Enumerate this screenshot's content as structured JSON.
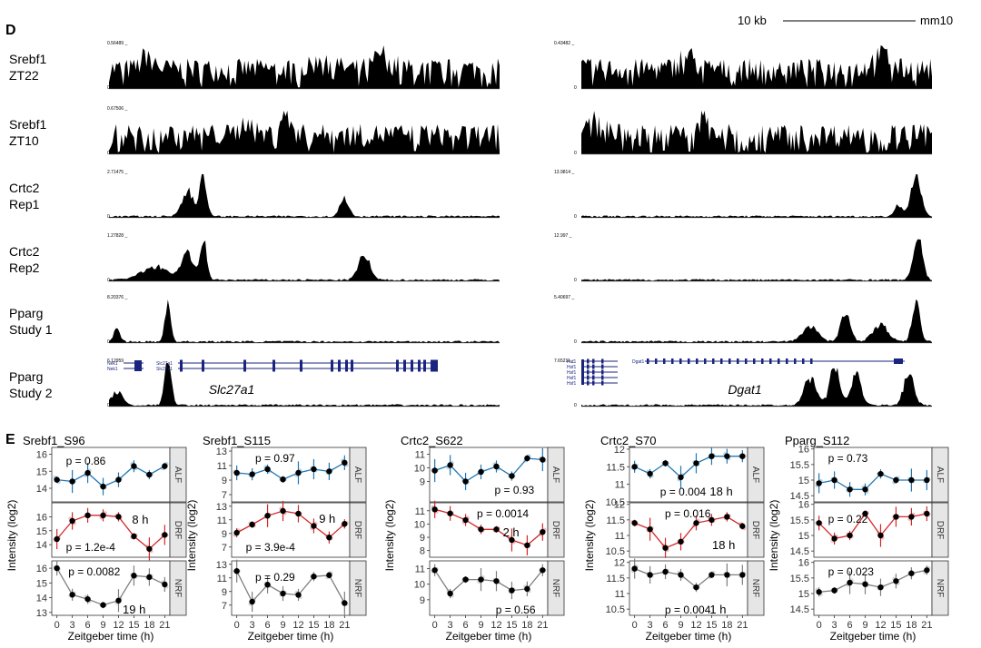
{
  "panel_d": {
    "label": "D",
    "scale_label": "10 kb",
    "assembly_label": "mm10",
    "tracks": [
      {
        "name1": "Srebf1",
        "name2": "ZT22",
        "left_max": "0.56489",
        "right_max": "0.43482"
      },
      {
        "name1": "Srebf1",
        "name2": "ZT10",
        "left_max": "0.67506",
        "right_max": ""
      },
      {
        "name1": "Crtc2",
        "name2": "Rep1",
        "left_max": "2.71475",
        "right_max": "13.9814"
      },
      {
        "name1": "Crtc2",
        "name2": "Rep2",
        "left_max": "1.27828",
        "right_max": "12.997"
      },
      {
        "name1": "Pparg",
        "name2": "Study 1",
        "left_max": "8.20376",
        "right_max": "5.40697"
      },
      {
        "name1": "Pparg",
        "name2": "Study 2",
        "left_max": "6.12959",
        "right_max": "7.65211"
      }
    ],
    "track_zero": "0",
    "left_gene_title": "Slc27a1",
    "right_gene_title": "Dgat1",
    "left_gene_labels": [
      "Nek1",
      "Nek1",
      "Slc27a1",
      "Slc27a1"
    ],
    "right_gene_labels": [
      "Hsf1",
      "Hsf1",
      "Hsf1",
      "Hsf1",
      "Hsf1",
      "Dgat1"
    ]
  },
  "panel_e": {
    "label": "E",
    "xlabel": "Zeitgeber time (h)",
    "ylabel": "Intensity (log2)",
    "strip_labels": [
      "ALF",
      "DRF",
      "NRF"
    ]
  },
  "colors": {
    "ALF": "#1f77b4",
    "DRF": "#d62728",
    "NRF": "#7f7f7f",
    "point": "#000000"
  },
  "chart_data": [
    {
      "type": "line",
      "title": "Srebf1_S96",
      "x": [
        0,
        3,
        6,
        9,
        12,
        15,
        18,
        21
      ],
      "xticks": [
        "0",
        "3",
        "6",
        "9",
        "12",
        "15",
        "18",
        "21"
      ],
      "series": [
        {
          "name": "ALF",
          "ylim": [
            13.2,
            16.4
          ],
          "yticks": [
            13,
            14,
            15,
            16
          ],
          "values": [
            14.5,
            14.4,
            14.9,
            14.1,
            14.5,
            15.3,
            14.8,
            15.3
          ],
          "annotations": [
            "p = 0.86"
          ]
        },
        {
          "name": "DRF",
          "ylim": [
            13.1,
            17.0
          ],
          "yticks": [
            14,
            15,
            16
          ],
          "values": [
            14.4,
            15.7,
            16.1,
            16.1,
            16.0,
            14.6,
            13.7,
            14.7
          ],
          "annotations": [
            "8 h",
            "p = 1.2e-4"
          ]
        },
        {
          "name": "NRF",
          "ylim": [
            12.8,
            16.5
          ],
          "yticks": [
            13,
            14,
            15,
            16
          ],
          "values": [
            16.0,
            14.2,
            13.9,
            13.5,
            13.8,
            15.5,
            15.4,
            14.9
          ],
          "annotations": [
            "p = 0.0082",
            "19 h"
          ]
        }
      ]
    },
    {
      "type": "line",
      "title": "Srebf1_S115",
      "x": [
        0,
        3,
        6,
        9,
        12,
        15,
        18,
        21
      ],
      "xticks": [
        "0",
        "3",
        "6",
        "9",
        "12",
        "15",
        "18",
        "21"
      ],
      "series": [
        {
          "name": "ALF",
          "ylim": [
            6.0,
            13.5
          ],
          "yticks": [
            7,
            9,
            11,
            13
          ],
          "values": [
            10.0,
            9.8,
            10.5,
            9.1,
            10.0,
            10.5,
            10.2,
            11.4
          ],
          "annotations": [
            "p = 0.97"
          ]
        },
        {
          "name": "DRF",
          "ylim": [
            5.5,
            13.5
          ],
          "yticks": [
            7,
            9,
            11,
            13
          ],
          "values": [
            9.1,
            10.3,
            11.6,
            12.3,
            11.9,
            10.1,
            8.4,
            10.4
          ],
          "annotations": [
            "9 h",
            "p = 3.9e-4"
          ]
        },
        {
          "name": "NRF",
          "ylim": [
            5.5,
            13.5
          ],
          "yticks": [
            7,
            9,
            11,
            13
          ],
          "values": [
            12.0,
            7.5,
            10.0,
            8.7,
            8.5,
            11.2,
            11.4,
            7.3
          ],
          "annotations": [
            "p = 0.29"
          ]
        }
      ]
    },
    {
      "type": "line",
      "title": "Crtc2_S622",
      "x": [
        0,
        3,
        6,
        9,
        12,
        15,
        18,
        21
      ],
      "xticks": [
        "0",
        "3",
        "6",
        "9",
        "12",
        "15",
        "18",
        "21"
      ],
      "series": [
        {
          "name": "ALF",
          "ylim": [
            7.5,
            11.5
          ],
          "yticks": [
            9,
            10,
            11
          ],
          "values": [
            9.8,
            10.2,
            9.0,
            9.7,
            10.1,
            9.4,
            10.7,
            10.6
          ],
          "annotations": [
            "p = 0.93"
          ]
        },
        {
          "name": "DRF",
          "ylim": [
            7.5,
            11.6
          ],
          "yticks": [
            8,
            9,
            10,
            11
          ],
          "values": [
            11.1,
            10.8,
            10.3,
            9.6,
            9.6,
            8.8,
            8.4,
            9.4
          ],
          "annotations": [
            "p = 0.0014",
            "2 h"
          ]
        },
        {
          "name": "NRF",
          "ylim": [
            8.0,
            11.5
          ],
          "yticks": [
            9,
            10,
            11
          ],
          "values": [
            10.9,
            9.4,
            10.3,
            10.3,
            10.2,
            9.6,
            9.7,
            10.9
          ],
          "annotations": [
            "p = 0.56"
          ]
        }
      ]
    },
    {
      "type": "line",
      "title": "Crtc2_S70",
      "x": [
        0,
        3,
        6,
        9,
        12,
        15,
        18,
        21
      ],
      "xticks": [
        "0",
        "3",
        "6",
        "9",
        "12",
        "15",
        "18",
        "21"
      ],
      "series": [
        {
          "name": "ALF",
          "ylim": [
            10.5,
            12.05
          ],
          "yticks": [
            10.5,
            11.0,
            11.5,
            12.0
          ],
          "values": [
            11.5,
            11.3,
            11.6,
            11.2,
            11.6,
            11.8,
            11.8,
            11.8
          ],
          "annotations": [
            "p = 0.004",
            "18 h"
          ]
        },
        {
          "name": "DRF",
          "ylim": [
            10.3,
            12.05
          ],
          "yticks": [
            10.5,
            11.0,
            11.5,
            12.0
          ],
          "values": [
            11.4,
            11.2,
            10.6,
            10.8,
            11.4,
            11.5,
            11.6,
            11.3
          ],
          "annotations": [
            "p = 0.016",
            "18 h"
          ]
        },
        {
          "name": "NRF",
          "ylim": [
            10.3,
            12.05
          ],
          "yticks": [
            10.5,
            11.0,
            11.5,
            12.0
          ],
          "values": [
            11.8,
            11.6,
            11.7,
            11.6,
            11.2,
            11.6,
            11.6,
            11.6
          ],
          "annotations": [
            "p = 0.004",
            "1 h"
          ]
        }
      ]
    },
    {
      "type": "line",
      "title": "Pparg_S112",
      "x": [
        0,
        3,
        6,
        9,
        12,
        15,
        18,
        21
      ],
      "xticks": [
        "0",
        "3",
        "6",
        "9",
        "12",
        "15",
        "18",
        "21"
      ],
      "series": [
        {
          "name": "ALF",
          "ylim": [
            14.3,
            16.05
          ],
          "yticks": [
            14.5,
            15.0,
            15.5,
            16.0
          ],
          "values": [
            14.9,
            15.0,
            14.7,
            14.7,
            15.2,
            15.0,
            15.0,
            15.0
          ],
          "annotations": [
            "p = 0.73"
          ]
        },
        {
          "name": "DRF",
          "ylim": [
            14.3,
            16.05
          ],
          "yticks": [
            14.5,
            15.0,
            15.5,
            16.0
          ],
          "values": [
            15.4,
            14.9,
            15.0,
            15.7,
            15.0,
            15.6,
            15.6,
            15.7
          ],
          "annotations": [
            "p = 0.22"
          ]
        },
        {
          "name": "NRF",
          "ylim": [
            14.3,
            16.05
          ],
          "yticks": [
            14.5,
            15.0,
            15.5,
            16.0
          ],
          "values": [
            15.05,
            15.1,
            15.35,
            15.3,
            15.2,
            15.4,
            15.65,
            15.75
          ],
          "annotations": [
            "p = 0.023"
          ]
        }
      ]
    }
  ]
}
